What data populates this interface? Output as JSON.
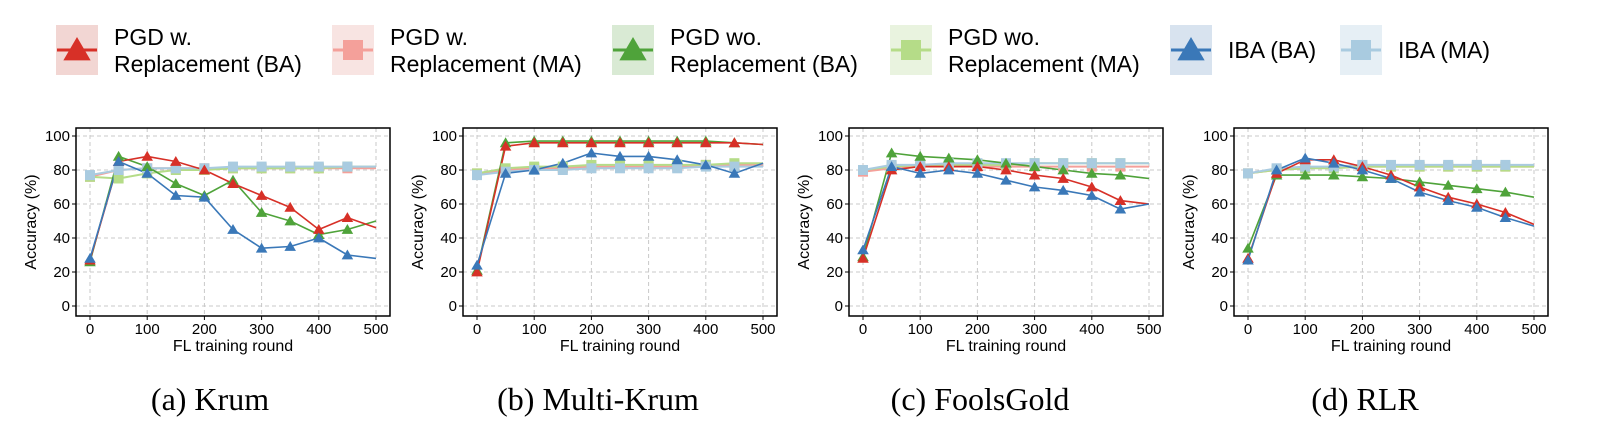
{
  "legend": [
    {
      "id": "pgd_w_ba",
      "lines": [
        "PGD w.",
        "Replacement (BA)"
      ],
      "color": "#d73027",
      "bg": "#f2d6d3",
      "marker": "triangle"
    },
    {
      "id": "pgd_w_ma",
      "lines": [
        "PGD w.",
        "Replacement (MA)"
      ],
      "color": "#f4a09a",
      "bg": "#f8e4e2",
      "marker": "square"
    },
    {
      "id": "pgd_wo_ba",
      "lines": [
        "PGD wo.",
        "Replacement (BA)"
      ],
      "color": "#4fa33a",
      "bg": "#d9ead4",
      "marker": "triangle"
    },
    {
      "id": "pgd_wo_ma",
      "lines": [
        "PGD wo.",
        "Replacement (MA)"
      ],
      "color": "#b5dc88",
      "bg": "#e9f3df",
      "marker": "square"
    },
    {
      "id": "iba_ba",
      "lines": [
        "IBA (BA)"
      ],
      "color": "#3a78b8",
      "bg": "#d8e3ef",
      "marker": "triangle"
    },
    {
      "id": "iba_ma",
      "lines": [
        "IBA (MA)"
      ],
      "color": "#a9cbe0",
      "bg": "#e6eff5",
      "marker": "square"
    }
  ],
  "chart_data": [
    {
      "type": "line",
      "caption": "(a) Krum",
      "xlabel": "FL training round",
      "ylabel": "Accuracy (%)",
      "xlim": [
        0,
        500
      ],
      "ylim": [
        0,
        100
      ],
      "xticks": [
        0,
        100,
        200,
        300,
        400,
        500
      ],
      "yticks": [
        0,
        20,
        40,
        60,
        80,
        100
      ],
      "grid": true,
      "series": [
        {
          "name": "PGD w. Replacement (BA)",
          "x": [
            0,
            50,
            100,
            150,
            200,
            250,
            300,
            350,
            400,
            450,
            500
          ],
          "y": [
            27,
            85,
            88,
            85,
            80,
            72,
            65,
            58,
            45,
            52,
            46
          ]
        },
        {
          "name": "PGD w. Replacement (MA)",
          "x": [
            0,
            50,
            100,
            150,
            200,
            250,
            300,
            350,
            400,
            450,
            500
          ],
          "y": [
            76,
            80,
            81,
            81,
            81,
            81,
            81,
            81,
            81,
            81,
            81
          ]
        },
        {
          "name": "PGD wo. Replacement (BA)",
          "x": [
            0,
            50,
            100,
            150,
            200,
            250,
            300,
            350,
            400,
            450,
            500
          ],
          "y": [
            26,
            88,
            82,
            72,
            65,
            74,
            55,
            50,
            42,
            45,
            50
          ]
        },
        {
          "name": "PGD wo. Replacement (MA)",
          "x": [
            0,
            50,
            100,
            150,
            200,
            250,
            300,
            350,
            400,
            450,
            500
          ],
          "y": [
            76,
            75,
            78,
            80,
            80,
            81,
            81,
            81,
            81,
            82,
            82
          ]
        },
        {
          "name": "IBA (BA)",
          "x": [
            0,
            50,
            100,
            150,
            200,
            250,
            300,
            350,
            400,
            450,
            500
          ],
          "y": [
            28,
            85,
            78,
            65,
            64,
            45,
            34,
            35,
            40,
            30,
            28
          ]
        },
        {
          "name": "IBA (MA)",
          "x": [
            0,
            50,
            100,
            150,
            200,
            250,
            300,
            350,
            400,
            450,
            500
          ],
          "y": [
            77,
            80,
            81,
            81,
            81,
            82,
            82,
            82,
            82,
            82,
            82
          ]
        }
      ]
    },
    {
      "type": "line",
      "caption": "(b) Multi-Krum",
      "xlabel": "FL training round",
      "ylabel": "Accuracy (%)",
      "xlim": [
        0,
        500
      ],
      "ylim": [
        0,
        100
      ],
      "xticks": [
        0,
        100,
        200,
        300,
        400,
        500
      ],
      "yticks": [
        0,
        20,
        40,
        60,
        80,
        100
      ],
      "grid": true,
      "series": [
        {
          "name": "PGD w. Replacement (BA)",
          "x": [
            0,
            50,
            100,
            150,
            200,
            250,
            300,
            350,
            400,
            450,
            500
          ],
          "y": [
            20,
            94,
            96,
            96,
            96,
            96,
            96,
            96,
            96,
            96,
            95
          ]
        },
        {
          "name": "PGD w. Replacement (MA)",
          "x": [
            0,
            50,
            100,
            150,
            200,
            250,
            300,
            350,
            400,
            450,
            500
          ],
          "y": [
            78,
            80,
            81,
            81,
            82,
            82,
            82,
            82,
            83,
            83,
            83
          ]
        },
        {
          "name": "PGD wo. Replacement (BA)",
          "x": [
            0,
            50,
            100,
            150,
            200,
            250,
            300,
            350,
            400,
            450,
            500
          ],
          "y": [
            21,
            96,
            97,
            97,
            97,
            97,
            97,
            97,
            97,
            96,
            95
          ]
        },
        {
          "name": "PGD wo. Replacement (MA)",
          "x": [
            0,
            50,
            100,
            150,
            200,
            250,
            300,
            350,
            400,
            450,
            500
          ],
          "y": [
            78,
            81,
            82,
            82,
            83,
            83,
            83,
            83,
            83,
            84,
            84
          ]
        },
        {
          "name": "IBA (BA)",
          "x": [
            0,
            50,
            100,
            150,
            200,
            250,
            300,
            350,
            400,
            450,
            500
          ],
          "y": [
            24,
            78,
            80,
            84,
            90,
            88,
            88,
            86,
            83,
            78,
            84
          ]
        },
        {
          "name": "IBA (MA)",
          "x": [
            0,
            50,
            100,
            150,
            200,
            250,
            300,
            350,
            400,
            450,
            500
          ],
          "y": [
            77,
            79,
            80,
            80,
            81,
            81,
            81,
            81,
            82,
            82,
            82
          ]
        }
      ]
    },
    {
      "type": "line",
      "caption": "(c) FoolsGold",
      "xlabel": "FL training round",
      "ylabel": "Accuracy (%)",
      "xlim": [
        0,
        500
      ],
      "ylim": [
        0,
        100
      ],
      "xticks": [
        0,
        100,
        200,
        300,
        400,
        500
      ],
      "yticks": [
        0,
        20,
        40,
        60,
        80,
        100
      ],
      "grid": true,
      "series": [
        {
          "name": "PGD w. Replacement (BA)",
          "x": [
            0,
            50,
            100,
            150,
            200,
            250,
            300,
            350,
            400,
            450,
            500
          ],
          "y": [
            28,
            80,
            82,
            82,
            82,
            80,
            77,
            75,
            70,
            62,
            60
          ]
        },
        {
          "name": "PGD w. Replacement (MA)",
          "x": [
            0,
            50,
            100,
            150,
            200,
            250,
            300,
            350,
            400,
            450,
            500
          ],
          "y": [
            79,
            81,
            82,
            82,
            82,
            82,
            82,
            82,
            82,
            82,
            82
          ]
        },
        {
          "name": "PGD wo. Replacement (BA)",
          "x": [
            0,
            50,
            100,
            150,
            200,
            250,
            300,
            350,
            400,
            450,
            500
          ],
          "y": [
            29,
            90,
            88,
            87,
            86,
            84,
            82,
            80,
            78,
            77,
            75
          ]
        },
        {
          "name": "PGD wo. Replacement (MA)",
          "x": [
            0,
            50,
            100,
            150,
            200,
            250,
            300,
            350,
            400,
            450,
            500
          ],
          "y": [
            80,
            82,
            83,
            83,
            83,
            83,
            84,
            84,
            84,
            84,
            84
          ]
        },
        {
          "name": "IBA (BA)",
          "x": [
            0,
            50,
            100,
            150,
            200,
            250,
            300,
            350,
            400,
            450,
            500
          ],
          "y": [
            33,
            82,
            78,
            80,
            78,
            74,
            70,
            68,
            65,
            57,
            60
          ]
        },
        {
          "name": "IBA (MA)",
          "x": [
            0,
            50,
            100,
            150,
            200,
            250,
            300,
            350,
            400,
            450,
            500
          ],
          "y": [
            80,
            83,
            83,
            84,
            84,
            84,
            84,
            84,
            84,
            84,
            84
          ]
        }
      ]
    },
    {
      "type": "line",
      "caption": "(d) RLR",
      "xlabel": "FL training round",
      "ylabel": "Accuracy (%)",
      "xlim": [
        0,
        500
      ],
      "ylim": [
        0,
        100
      ],
      "xticks": [
        0,
        100,
        200,
        300,
        400,
        500
      ],
      "yticks": [
        0,
        20,
        40,
        60,
        80,
        100
      ],
      "grid": true,
      "series": [
        {
          "name": "PGD w. Replacement (BA)",
          "x": [
            0,
            50,
            100,
            150,
            200,
            250,
            300,
            350,
            400,
            450,
            500
          ],
          "y": [
            28,
            78,
            86,
            86,
            82,
            77,
            70,
            64,
            60,
            55,
            48
          ]
        },
        {
          "name": "PGD w. Replacement (MA)",
          "x": [
            0,
            50,
            100,
            150,
            200,
            250,
            300,
            350,
            400,
            450,
            500
          ],
          "y": [
            78,
            80,
            81,
            82,
            82,
            82,
            82,
            82,
            82,
            82,
            82
          ]
        },
        {
          "name": "PGD wo. Replacement (BA)",
          "x": [
            0,
            50,
            100,
            150,
            200,
            250,
            300,
            350,
            400,
            450,
            500
          ],
          "y": [
            34,
            77,
            77,
            77,
            76,
            75,
            73,
            71,
            69,
            67,
            64
          ]
        },
        {
          "name": "PGD wo. Replacement (MA)",
          "x": [
            0,
            50,
            100,
            150,
            200,
            250,
            300,
            350,
            400,
            450,
            500
          ],
          "y": [
            78,
            80,
            81,
            81,
            82,
            82,
            82,
            82,
            82,
            82,
            82
          ]
        },
        {
          "name": "IBA (BA)",
          "x": [
            0,
            50,
            100,
            150,
            200,
            250,
            300,
            350,
            400,
            450,
            500
          ],
          "y": [
            27,
            80,
            87,
            84,
            80,
            75,
            67,
            62,
            58,
            52,
            47
          ]
        },
        {
          "name": "IBA (MA)",
          "x": [
            0,
            50,
            100,
            150,
            200,
            250,
            300,
            350,
            400,
            450,
            500
          ],
          "y": [
            78,
            81,
            82,
            82,
            83,
            83,
            83,
            83,
            83,
            83,
            83
          ]
        }
      ]
    }
  ]
}
